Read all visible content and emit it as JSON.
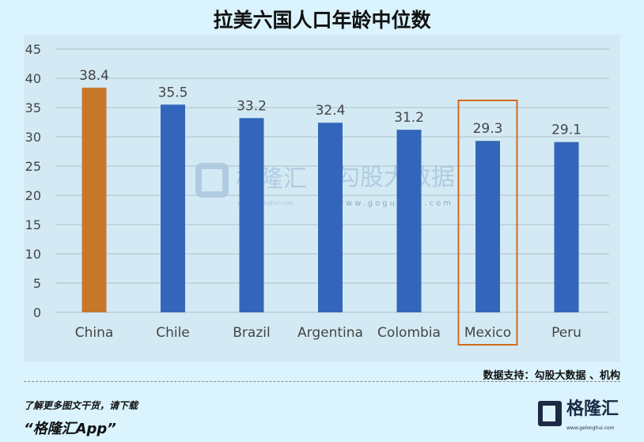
{
  "title": "拉美六国人口年龄中位数",
  "source": "数据支持：勾股大数据 、机构",
  "promo": {
    "line1": "了解更多图文干货，请下载",
    "line2": "“格隆汇App”"
  },
  "logo": {
    "name": "格隆汇",
    "url": "www.gelonghui.com"
  },
  "watermark": {
    "left": "格隆汇",
    "left_url": "www.gelonghui.com",
    "right": "勾股大数据",
    "right_url": "www.gogudata.com"
  },
  "colors": {
    "bar": "#3366bb",
    "highlight_bar": "#c8772a",
    "highlight_box": "#d2691e",
    "grid": "#b8c8d0"
  },
  "chart_data": {
    "type": "bar",
    "title": "拉美六国人口年龄中位数",
    "categories": [
      "China",
      "Chile",
      "Brazil",
      "Argentina",
      "Colombia",
      "Mexico",
      "Peru"
    ],
    "values": [
      38.4,
      35.5,
      33.2,
      32.4,
      31.2,
      29.3,
      29.1
    ],
    "data_labels": [
      "38.4",
      "35.5",
      "33.2",
      "32.4",
      "31.2",
      "29.3",
      "29.1"
    ],
    "ylim": [
      0,
      45
    ],
    "yticks": [
      0,
      5,
      10,
      15,
      20,
      25,
      30,
      35,
      40,
      45
    ],
    "grid": true,
    "highlighted_bar": "China",
    "boxed_category": "Mexico",
    "legend": "none"
  }
}
